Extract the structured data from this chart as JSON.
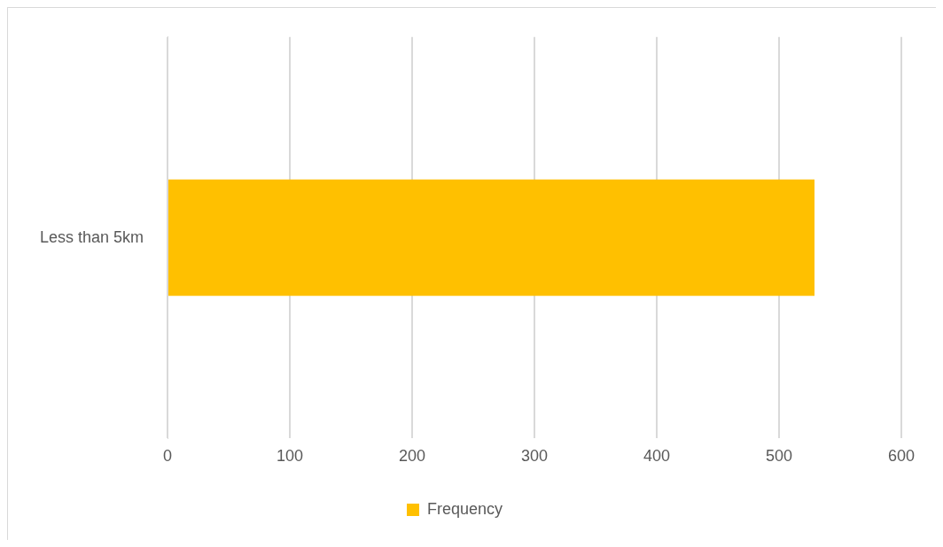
{
  "chart_data": {
    "type": "bar",
    "orientation": "horizontal",
    "categories": [
      "Less than 5km"
    ],
    "series": [
      {
        "name": "Frequency",
        "color": "#ffc000",
        "values": [
          529
        ]
      }
    ],
    "xlim": [
      0,
      600
    ],
    "xticks": [
      0,
      100,
      200,
      300,
      400,
      500,
      600
    ],
    "grid": "x",
    "legend": "bottom"
  }
}
